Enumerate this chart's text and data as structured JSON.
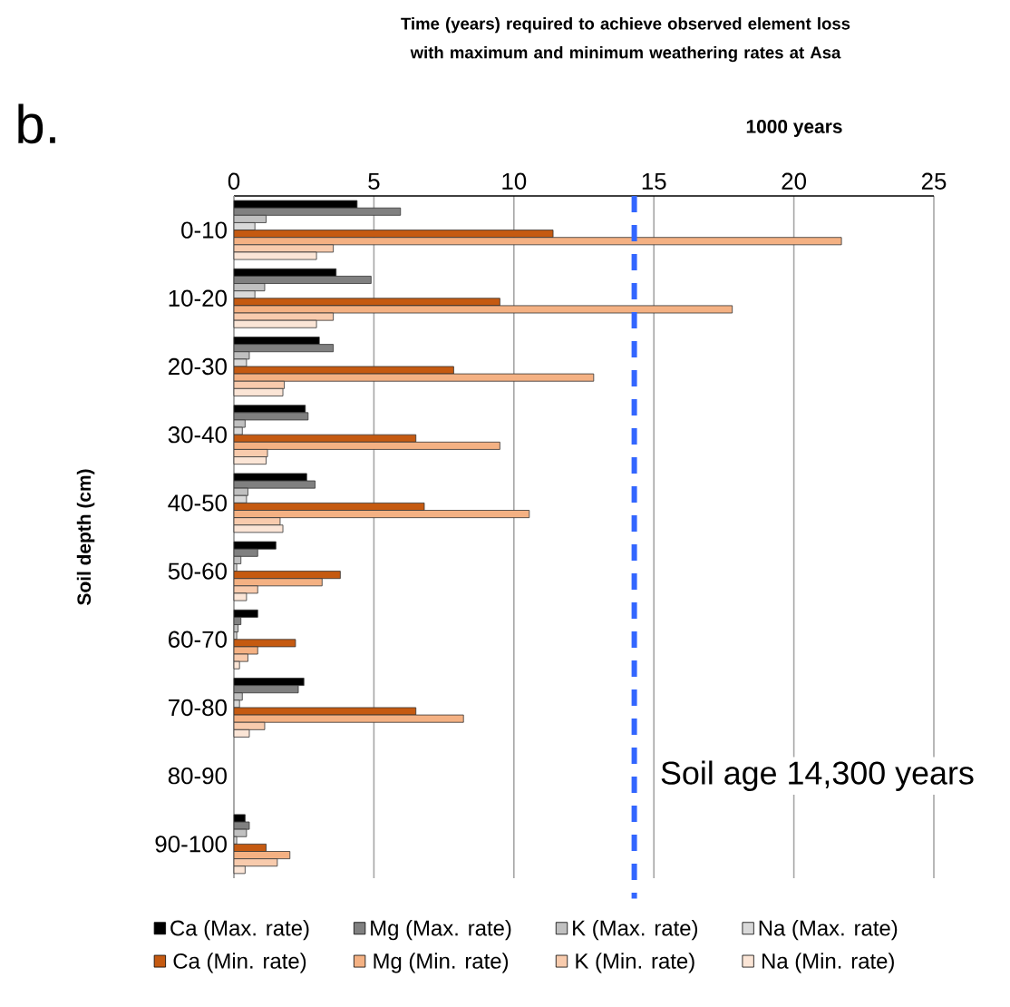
{
  "chart_data": {
    "type": "bar",
    "orientation": "horizontal",
    "title": "Time (years) required to achieve observed element loss with maximum and minimum weathering rates at Asa",
    "xlabel": "1000 years",
    "ylabel": "Soil depth (cm)",
    "annotations": [
      "b."
    ],
    "categories": [
      "0-10",
      "10-20",
      "20-30",
      "30-40",
      "40-50",
      "50-60",
      "60-70",
      "70-80",
      "80-90",
      "90-100"
    ],
    "xlim": [
      0,
      25
    ],
    "xticks": [
      0,
      5,
      10,
      15,
      20,
      25
    ],
    "grid": "x",
    "legend": "bottom",
    "ref_lines": [
      {
        "axis": "x",
        "value": 14.3,
        "label": "Soil age 14,300 years",
        "color": "#3366ff",
        "line_style": "dashed"
      }
    ],
    "series": [
      {
        "name": "Ca (Max. rate)",
        "color": "#000000",
        "values": [
          4.4,
          3.65,
          3.05,
          2.55,
          2.6,
          1.5,
          0.85,
          2.5,
          null,
          0.4
        ]
      },
      {
        "name": "Mg (Max. rate)",
        "color": "#808080",
        "values": [
          5.95,
          4.9,
          3.55,
          2.65,
          2.9,
          0.85,
          0.25,
          2.3,
          null,
          0.55
        ]
      },
      {
        "name": "K (Max. rate)",
        "color": "#c0c0c0",
        "values": [
          1.15,
          1.1,
          0.55,
          0.4,
          0.5,
          0.25,
          0.15,
          0.3,
          null,
          0.45
        ]
      },
      {
        "name": "Na (Max. rate)",
        "color": "#d9d9d9",
        "values": [
          0.75,
          0.75,
          0.45,
          0.3,
          0.45,
          0.1,
          0.1,
          0.2,
          null,
          0.1
        ]
      },
      {
        "name": "Ca (Min. rate)",
        "color": "#c55a11",
        "values": [
          11.4,
          9.5,
          7.85,
          6.5,
          6.8,
          3.8,
          2.2,
          6.5,
          null,
          1.15
        ]
      },
      {
        "name": "Mg (Min. rate)",
        "color": "#f4b183",
        "values": [
          21.7,
          17.8,
          12.85,
          9.5,
          10.55,
          3.15,
          0.85,
          8.2,
          null,
          2.0
        ]
      },
      {
        "name": "K (Min. rate)",
        "color": "#f8cbad",
        "values": [
          3.55,
          3.55,
          1.8,
          1.2,
          1.65,
          0.85,
          0.5,
          1.1,
          null,
          1.55
        ]
      },
      {
        "name": "Na (Min. rate)",
        "color": "#fbe5d6",
        "values": [
          2.95,
          2.95,
          1.75,
          1.15,
          1.75,
          0.45,
          0.2,
          0.55,
          null,
          0.4
        ]
      }
    ]
  }
}
